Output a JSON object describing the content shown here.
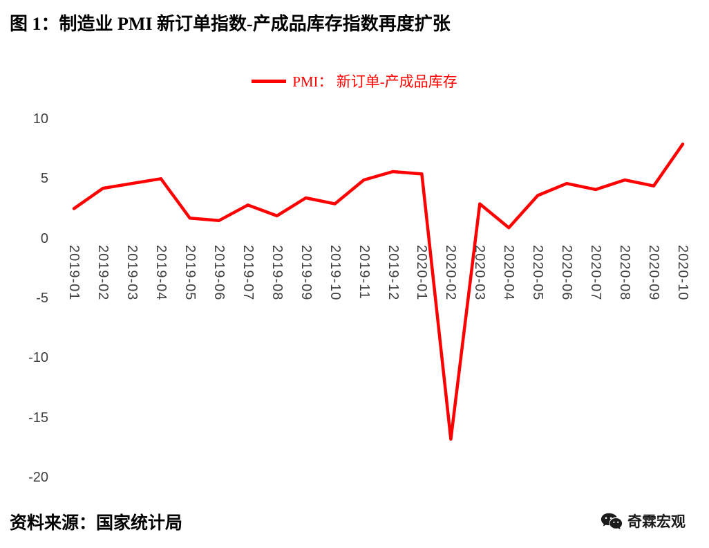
{
  "page": {
    "source": "资料来源：国家统计局",
    "brand": "奇霖宏观"
  },
  "chart_data": {
    "type": "line",
    "title": "图 1：制造业 PMI 新订单指数-产成品库存指数再度扩张",
    "legend_label": "PMI： 新订单-产成品库存",
    "legend_position": "top-center",
    "line_color": "#FF0000",
    "grid": false,
    "axis_lines": false,
    "categories": [
      "2019-01",
      "2019-02",
      "2019-03",
      "2019-04",
      "2019-05",
      "2019-06",
      "2019-07",
      "2019-08",
      "2019-09",
      "2019-10",
      "2019-11",
      "2019-12",
      "2020-01",
      "2020-02",
      "2020-03",
      "2020-04",
      "2020-05",
      "2020-06",
      "2020-07",
      "2020-08",
      "2020-09",
      "2020-10"
    ],
    "series": [
      {
        "name": "PMI： 新订单-产成品库存",
        "values": [
          2.5,
          4.2,
          4.6,
          5.0,
          1.7,
          1.5,
          2.8,
          1.9,
          3.4,
          2.9,
          4.9,
          5.6,
          5.4,
          -16.8,
          2.9,
          0.9,
          3.6,
          4.6,
          4.1,
          4.9,
          4.4,
          7.9
        ]
      }
    ],
    "xlabel": "",
    "ylabel": "",
    "ylim": [
      -20,
      10
    ],
    "yticks": [
      10,
      5,
      0,
      -5,
      -10,
      -15,
      -20
    ]
  }
}
